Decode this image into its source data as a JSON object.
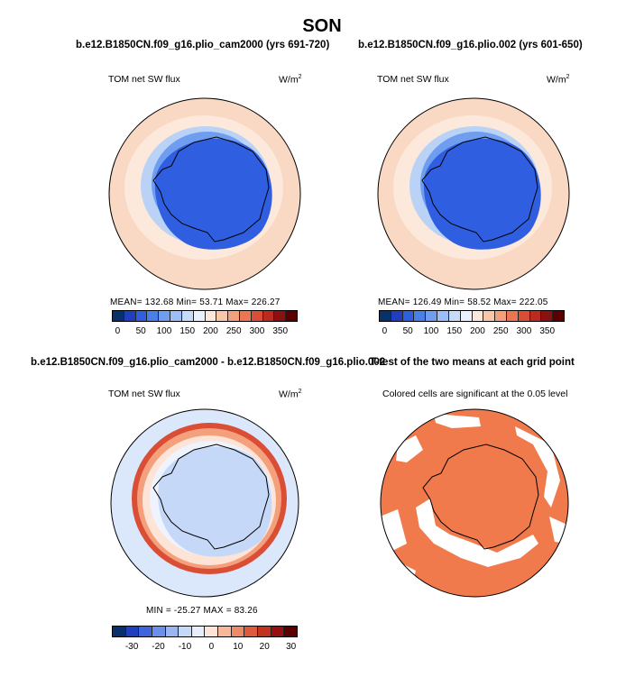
{
  "figure": {
    "title": "SON"
  },
  "panels": [
    {
      "id": "case1",
      "header": "b.e12.B1850CN.f09_g16.plio_cam2000 (yrs 691-720)",
      "variable": "TOM net SW flux",
      "units": "W/m",
      "units_exp": "2",
      "stats": "MEAN=  132.68   Min=   53.71   Max=  226.27",
      "colorbar_ticks": [
        "0",
        "50",
        "100",
        "150",
        "200",
        "250",
        "300",
        "350"
      ]
    },
    {
      "id": "case2",
      "header": "b.e12.B1850CN.f09_g16.plio.002 (yrs 601-650)",
      "variable": "TOM net SW flux",
      "units": "W/m",
      "units_exp": "2",
      "stats": "MEAN=  126.49   Min=   58.52   Max=  222.05",
      "colorbar_ticks": [
        "0",
        "50",
        "100",
        "150",
        "200",
        "250",
        "300",
        "350"
      ]
    },
    {
      "id": "diff",
      "header": "b.e12.B1850CN.f09_g16.plio_cam2000 - b.e12.B1850CN.f09_g16.plio.002",
      "variable": "TOM net SW flux",
      "units": "W/m",
      "units_exp": "2",
      "stats": "MIN = -25.27  MAX =  83.26",
      "colorbar_ticks": [
        "-30",
        "-20",
        "-10",
        "0",
        "10",
        "20",
        "30"
      ]
    },
    {
      "id": "ttest",
      "header": "T-test of the two means at each grid point",
      "subtitle": "Colored cells are significant at the 0.05 level"
    }
  ],
  "colors": {
    "abs_scale": [
      "#08306b",
      "#1f3fbf",
      "#2f5fe0",
      "#4a7fe8",
      "#6f9ef0",
      "#9cbdf5",
      "#c6dbfa",
      "#e8f1fd",
      "#fde9dc",
      "#f9c6a8",
      "#f4a07c",
      "#ea7652",
      "#d94e35",
      "#bd2a1f",
      "#8c1010",
      "#5a0000"
    ],
    "diff_scale": [
      "#08306b",
      "#1f3fbf",
      "#3d66dc",
      "#6a8fe8",
      "#9ab6f2",
      "#c6d8f8",
      "#e6eefc",
      "#fde4d6",
      "#f7b89a",
      "#ee8b66",
      "#dd5a3c",
      "#c2321f",
      "#961010",
      "#5a0000"
    ],
    "land_ice": "#2350e3",
    "ocean_band": "#f6c7ae",
    "significant": "#f07a4c"
  }
}
